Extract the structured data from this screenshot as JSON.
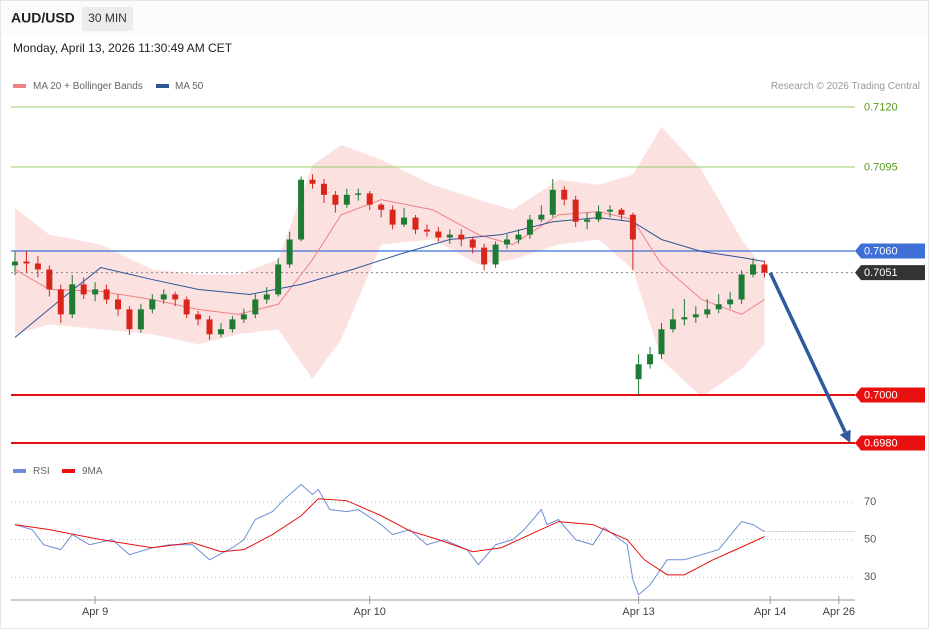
{
  "chart_data": [
    {
      "type": "candlestick",
      "symbol": "AUD/USD",
      "timeframe": "30 MIN",
      "timestamp": "Monday, April 13, 2026 11:30:49 AM CET",
      "credit": "Research © 2026 Trading Central",
      "xlim": [
        -1,
        147
      ],
      "ylim": [
        0.6975,
        0.7125
      ],
      "up_color": "#1e7b34",
      "down_color": "#d9261c",
      "x": [
        0,
        2,
        4,
        6,
        8,
        10,
        12,
        14,
        16,
        18,
        20,
        22,
        24,
        26,
        28,
        30,
        32,
        34,
        36,
        38,
        40,
        42,
        44,
        46,
        48,
        50,
        52,
        54,
        56,
        58,
        60,
        62,
        64,
        66,
        68,
        70,
        72,
        74,
        76,
        78,
        80,
        82,
        84,
        86,
        88,
        90,
        92,
        94,
        96,
        98,
        100,
        102,
        104,
        106,
        108,
        109,
        111,
        113,
        115,
        117,
        119,
        121,
        123,
        125,
        127,
        129,
        131
      ],
      "open": [
        0.7054,
        0.70556,
        0.70548,
        0.70523,
        0.7044,
        0.70336,
        0.70461,
        0.70419,
        0.7044,
        0.70398,
        0.70357,
        0.70274,
        0.70357,
        0.70398,
        0.70419,
        0.70398,
        0.70336,
        0.70315,
        0.70253,
        0.70274,
        0.70315,
        0.70336,
        0.70398,
        0.70419,
        0.70544,
        0.70648,
        0.70897,
        0.7088,
        0.70834,
        0.70793,
        0.70834,
        0.7084,
        0.70793,
        0.70772,
        0.7071,
        0.70739,
        0.70689,
        0.70681,
        0.70656,
        0.70668,
        0.70648,
        0.70614,
        0.70544,
        0.70627,
        0.70648,
        0.70668,
        0.70731,
        0.70751,
        0.70855,
        0.70814,
        0.70722,
        0.70731,
        0.70764,
        0.70772,
        0.70751,
        0.70066,
        0.70128,
        0.7017,
        0.70274,
        0.70315,
        0.70324,
        0.70336,
        0.70357,
        0.70378,
        0.70398,
        0.70502,
        0.70544
      ],
      "high": [
        0.706,
        0.706,
        0.7058,
        0.7054,
        0.7046,
        0.705,
        0.7049,
        0.7047,
        0.7046,
        0.7042,
        0.7037,
        0.7038,
        0.7042,
        0.7044,
        0.7043,
        0.7041,
        0.7035,
        0.7033,
        0.703,
        0.7033,
        0.7036,
        0.7042,
        0.7045,
        0.7057,
        0.7068,
        0.7091,
        0.7092,
        0.709,
        0.7085,
        0.7086,
        0.7086,
        0.7085,
        0.708,
        0.7079,
        0.7078,
        0.7075,
        0.7071,
        0.707,
        0.7069,
        0.7069,
        0.7066,
        0.7063,
        0.7064,
        0.7067,
        0.7069,
        0.7075,
        0.7079,
        0.709,
        0.7087,
        0.7083,
        0.7076,
        0.7079,
        0.7079,
        0.7078,
        0.7076,
        0.7017,
        0.702,
        0.703,
        0.7036,
        0.704,
        0.7037,
        0.704,
        0.7042,
        0.7043,
        0.7052,
        0.7057,
        0.7056
      ],
      "low": [
        0.705,
        0.7051,
        0.7049,
        0.7041,
        0.703,
        0.7032,
        0.704,
        0.7039,
        0.7038,
        0.7033,
        0.7025,
        0.7026,
        0.7034,
        0.7038,
        0.7037,
        0.7032,
        0.7029,
        0.7023,
        0.7024,
        0.7026,
        0.703,
        0.7032,
        0.7038,
        0.7041,
        0.7053,
        0.7064,
        0.7086,
        0.708,
        0.7076,
        0.7078,
        0.7081,
        0.7077,
        0.7074,
        0.7069,
        0.707,
        0.7067,
        0.7066,
        0.7064,
        0.7063,
        0.7062,
        0.7059,
        0.7052,
        0.7053,
        0.7061,
        0.7063,
        0.7065,
        0.7072,
        0.7074,
        0.7079,
        0.707,
        0.7069,
        0.7072,
        0.7074,
        0.7073,
        0.7052,
        0.7,
        0.7011,
        0.7015,
        0.7026,
        0.7029,
        0.703,
        0.7032,
        0.7034,
        0.7036,
        0.7038,
        0.7049,
        0.7049
      ],
      "close": [
        0.70556,
        0.70548,
        0.70523,
        0.7044,
        0.70336,
        0.70461,
        0.70419,
        0.7044,
        0.70398,
        0.70357,
        0.70274,
        0.70357,
        0.70398,
        0.70419,
        0.70398,
        0.70336,
        0.70315,
        0.70253,
        0.70274,
        0.70315,
        0.70336,
        0.70398,
        0.70419,
        0.70544,
        0.70648,
        0.70897,
        0.7088,
        0.70834,
        0.70793,
        0.70834,
        0.7084,
        0.70793,
        0.70772,
        0.7071,
        0.70739,
        0.70689,
        0.70681,
        0.70656,
        0.70668,
        0.70648,
        0.70614,
        0.70544,
        0.70627,
        0.70648,
        0.70668,
        0.70731,
        0.70751,
        0.70855,
        0.70814,
        0.70722,
        0.70731,
        0.70764,
        0.70772,
        0.70751,
        0.70648,
        0.70128,
        0.7017,
        0.70274,
        0.70315,
        0.70324,
        0.70336,
        0.70357,
        0.70378,
        0.70398,
        0.70502,
        0.70544,
        0.7051
      ],
      "series": [
        {
          "name": "MA 20 + Bollinger Bands",
          "color": "#f08080",
          "x": [
            0,
            6,
            15,
            24,
            32,
            39,
            46,
            52,
            57,
            64,
            73,
            81,
            87,
            95,
            102,
            108,
            113,
            120,
            127,
            131
          ],
          "values": [
            0.70523,
            0.7044,
            0.70432,
            0.70398,
            0.70357,
            0.70336,
            0.70378,
            0.70564,
            0.70751,
            0.70814,
            0.70772,
            0.70668,
            0.70627,
            0.70751,
            0.70764,
            0.70731,
            0.70544,
            0.70398,
            0.70336,
            0.70398
          ]
        },
        {
          "name": "MA 50",
          "color": "#2f5597",
          "x": [
            0,
            8,
            15,
            24,
            32,
            41,
            50,
            59,
            67,
            76,
            85,
            94,
            102,
            108,
            113,
            120,
            127,
            131
          ],
          "values": [
            0.7024,
            0.70398,
            0.70531,
            0.70481,
            0.7044,
            0.70419,
            0.70461,
            0.70523,
            0.70585,
            0.70648,
            0.70668,
            0.70722,
            0.70739,
            0.70722,
            0.70648,
            0.70598,
            0.70573,
            0.70556
          ]
        }
      ],
      "bands": {
        "color": "#fcdcdc",
        "x": [
          0,
          6,
          15,
          24,
          32,
          39,
          46,
          52,
          57,
          64,
          73,
          81,
          87,
          95,
          102,
          108,
          113,
          120,
          127,
          131
        ],
        "upper": [
          0.7078,
          0.70668,
          0.70627,
          0.70523,
          0.70502,
          0.70502,
          0.70564,
          0.70959,
          0.71042,
          0.7098,
          0.70876,
          0.70814,
          0.70772,
          0.70897,
          0.70876,
          0.70918,
          0.71117,
          0.70938,
          0.70648,
          0.70523
        ],
        "lower": [
          0.70253,
          0.70294,
          0.70274,
          0.70253,
          0.70211,
          0.70253,
          0.70274,
          0.70066,
          0.70232,
          0.70627,
          0.70648,
          0.70544,
          0.70564,
          0.70627,
          0.70648,
          0.70523,
          0.70149,
          0.69991,
          0.70108,
          0.70211
        ]
      },
      "levels": [
        {
          "value": 0.712,
          "label": "0.7120",
          "color": "#9acd6a",
          "text_color": "#5a9a1e",
          "width": 1,
          "dash": false,
          "box": false
        },
        {
          "value": 0.7095,
          "label": "0.7095",
          "color": "#9acd6a",
          "text_color": "#5a9a1e",
          "width": 1,
          "dash": false,
          "box": false
        },
        {
          "value": 0.706,
          "label": "0.7060",
          "color": "#3d6fd6",
          "text_color": "#ffffff",
          "width": 1.2,
          "dash": false,
          "box": true
        },
        {
          "value": 0.7051,
          "label": "0.7051",
          "color": "#888888",
          "text_color": "#ffffff",
          "width": 1,
          "dash": true,
          "box": true,
          "box_color": "#333333"
        },
        {
          "value": 0.7,
          "label": "0.7000",
          "color": "#e8100f",
          "text_color": "#ffffff",
          "width": 2,
          "dash": false,
          "box": true
        },
        {
          "value": 0.698,
          "label": "0.6980",
          "color": "#e8100f",
          "text_color": "#ffffff",
          "width": 2,
          "dash": false,
          "box": true
        }
      ],
      "arrow": {
        "color": "#2f5aa0",
        "from": [
          132,
          0.7051
        ],
        "to": [
          146,
          0.698
        ]
      }
    },
    {
      "type": "line",
      "xlim": [
        -1,
        147
      ],
      "ylim": [
        19,
        87
      ],
      "yticks": [
        70,
        50,
        30
      ],
      "xticks": [
        {
          "value": 14,
          "label": "Apr 9"
        },
        {
          "value": 62,
          "label": "Apr 10"
        },
        {
          "value": 109,
          "label": "Apr 13"
        },
        {
          "value": 132,
          "label": "Apr 14"
        },
        {
          "value": 144,
          "label": "Apr 26"
        }
      ],
      "series": [
        {
          "name": "RSI",
          "color": "#6a8fd8",
          "x": [
            0,
            3,
            5,
            8,
            10,
            13,
            17,
            20,
            24,
            27,
            31,
            34,
            38,
            40,
            42,
            45,
            47,
            50,
            52,
            53,
            55,
            58,
            60,
            64,
            66,
            69,
            72,
            75,
            79,
            81,
            84,
            87,
            89,
            92,
            93,
            95,
            98,
            101,
            103,
            107,
            108,
            109,
            111,
            114,
            117,
            120,
            123,
            127,
            129,
            131
          ],
          "values": [
            58,
            55.3,
            47.3,
            44.7,
            52.7,
            47.3,
            50,
            42,
            45.7,
            47.3,
            47.3,
            39.3,
            45.7,
            50,
            60.7,
            64.9,
            71.3,
            79.3,
            74,
            76.7,
            66,
            64.9,
            66,
            58,
            52.7,
            55.3,
            47.3,
            50,
            44.7,
            36.7,
            47.3,
            50,
            55.3,
            66,
            58,
            60.7,
            50,
            47.3,
            56.4,
            47.3,
            28.7,
            20.7,
            26,
            39.3,
            39.3,
            42,
            44.7,
            59.6,
            58,
            54.3
          ]
        },
        {
          "name": "9MA",
          "color": "#e8100f",
          "x": [
            0,
            6,
            15,
            24,
            31,
            36,
            40,
            45,
            50,
            53,
            58,
            64,
            69,
            74,
            80,
            85,
            90,
            95,
            101,
            107,
            110,
            114,
            117,
            122,
            126,
            131
          ],
          "values": [
            58,
            55.3,
            50,
            45.7,
            48.4,
            43.6,
            44.7,
            52.7,
            62.7,
            71.7,
            70.7,
            62.7,
            54.7,
            50,
            43.6,
            45.7,
            52.7,
            59.6,
            58,
            50,
            39.3,
            31.3,
            31.3,
            39.3,
            44.7,
            51.6
          ]
        }
      ]
    }
  ]
}
